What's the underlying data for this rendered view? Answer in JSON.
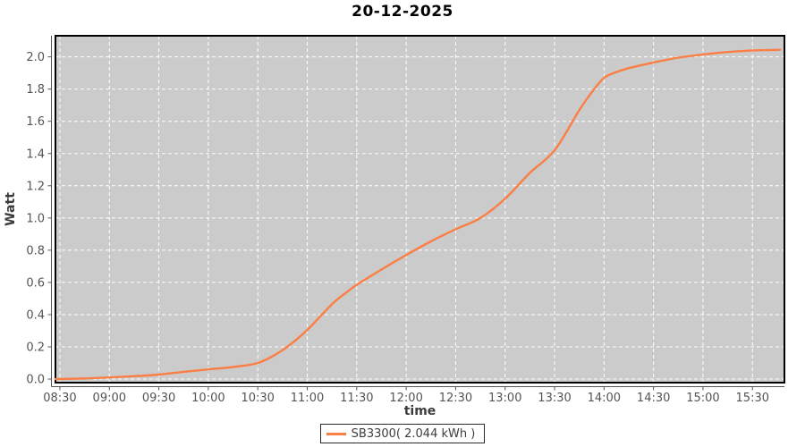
{
  "title": "20-12-2025",
  "legend": {
    "label": "SB3300( 2.044 kWh )"
  },
  "colors": {
    "series": "#fb7e44",
    "plot_background": "#cbcbcb",
    "plot_border": "#000000",
    "gridline": "#ffffff",
    "axis_line": "#545454",
    "tick_label": "#545454",
    "title_text": "#000000",
    "axis_title_text": "#3c3c3c"
  },
  "chart_data": {
    "type": "line",
    "title": "20-12-2025",
    "xlabel": "time",
    "ylabel": "Watt",
    "legend_position": "bottom-center",
    "grid": "white dashed on gray plot background",
    "xlim_hours": [
      8.455,
      15.823
    ],
    "ylim": [
      -0.022,
      2.131
    ],
    "x_ticks": [
      {
        "v": 8.5,
        "label": "08:30"
      },
      {
        "v": 9.0,
        "label": "09:00"
      },
      {
        "v": 9.5,
        "label": "09:30"
      },
      {
        "v": 10.0,
        "label": "10:00"
      },
      {
        "v": 10.5,
        "label": "10:30"
      },
      {
        "v": 11.0,
        "label": "11:00"
      },
      {
        "v": 11.5,
        "label": "11:30"
      },
      {
        "v": 12.0,
        "label": "12:00"
      },
      {
        "v": 12.5,
        "label": "12:30"
      },
      {
        "v": 13.0,
        "label": "13:00"
      },
      {
        "v": 13.5,
        "label": "13:30"
      },
      {
        "v": 14.0,
        "label": "14:00"
      },
      {
        "v": 14.5,
        "label": "14:30"
      },
      {
        "v": 15.0,
        "label": "15:00"
      },
      {
        "v": 15.5,
        "label": "15:30"
      }
    ],
    "y_ticks": [
      {
        "v": 0.0,
        "label": "0.0"
      },
      {
        "v": 0.2,
        "label": "0.2"
      },
      {
        "v": 0.4,
        "label": "0.4"
      },
      {
        "v": 0.6,
        "label": "0.6"
      },
      {
        "v": 0.8,
        "label": "0.8"
      },
      {
        "v": 1.0,
        "label": "1.0"
      },
      {
        "v": 1.2,
        "label": "1.2"
      },
      {
        "v": 1.4,
        "label": "1.4"
      },
      {
        "v": 1.6,
        "label": "1.6"
      },
      {
        "v": 1.8,
        "label": "1.8"
      },
      {
        "v": 2.0,
        "label": "2.0"
      }
    ],
    "series": [
      {
        "name": "SB3300( 2.044 kWh )",
        "color": "#fb7e44",
        "total_kwh": 2.044,
        "points": [
          [
            8.455,
            0.0
          ],
          [
            8.5,
            0.0
          ],
          [
            8.75,
            0.004
          ],
          [
            9.0,
            0.01
          ],
          [
            9.25,
            0.018
          ],
          [
            9.5,
            0.028
          ],
          [
            9.75,
            0.045
          ],
          [
            10.0,
            0.06
          ],
          [
            10.25,
            0.075
          ],
          [
            10.5,
            0.1
          ],
          [
            10.7,
            0.16
          ],
          [
            10.85,
            0.225
          ],
          [
            11.0,
            0.305
          ],
          [
            11.25,
            0.465
          ],
          [
            11.4,
            0.54
          ],
          [
            11.5,
            0.585
          ],
          [
            11.75,
            0.68
          ],
          [
            12.0,
            0.77
          ],
          [
            12.25,
            0.855
          ],
          [
            12.5,
            0.93
          ],
          [
            12.75,
            1.0
          ],
          [
            13.0,
            1.12
          ],
          [
            13.25,
            1.28
          ],
          [
            13.5,
            1.42
          ],
          [
            13.75,
            1.67
          ],
          [
            13.9,
            1.8
          ],
          [
            14.0,
            1.87
          ],
          [
            14.1,
            1.9
          ],
          [
            14.25,
            1.93
          ],
          [
            14.5,
            1.965
          ],
          [
            14.75,
            1.995
          ],
          [
            15.0,
            2.015
          ],
          [
            15.25,
            2.03
          ],
          [
            15.5,
            2.04
          ],
          [
            15.78,
            2.044
          ]
        ]
      }
    ]
  }
}
